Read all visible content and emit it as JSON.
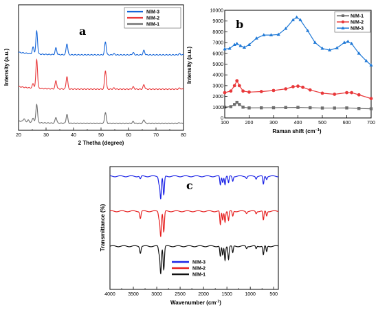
{
  "chart_data": [
    {
      "type": "line",
      "panel_label": "a",
      "xlabel": "2 Thetha (degree)",
      "ylabel": "Intensity (a.u.)",
      "xlim": [
        20,
        80
      ],
      "x_ticks": [
        "20",
        "30",
        "40",
        "50",
        "60",
        "70",
        "80"
      ],
      "y_ticks_labeled": false,
      "legend_position": "top-right",
      "series": [
        {
          "name": "N/M-3",
          "color": "#1565d8",
          "offset": 2.0,
          "peaks": [
            {
              "x": 25.3,
              "h": 0.18
            },
            {
              "x": 26.6,
              "h": 0.62
            },
            {
              "x": 33.6,
              "h": 0.18
            },
            {
              "x": 37.6,
              "h": 0.3
            },
            {
              "x": 51.6,
              "h": 0.35
            },
            {
              "x": 54.7,
              "h": 0.03
            },
            {
              "x": 61.7,
              "h": 0.06
            },
            {
              "x": 65.6,
              "h": 0.12
            },
            {
              "x": 78.6,
              "h": 0.03
            }
          ]
        },
        {
          "name": "N/M-2",
          "color": "#e8383a",
          "offset": 1.0,
          "peaks": [
            {
              "x": 25.3,
              "h": 0.12
            },
            {
              "x": 26.6,
              "h": 0.78
            },
            {
              "x": 33.6,
              "h": 0.22
            },
            {
              "x": 37.6,
              "h": 0.34
            },
            {
              "x": 51.6,
              "h": 0.5
            },
            {
              "x": 54.7,
              "h": 0.03
            },
            {
              "x": 61.7,
              "h": 0.06
            },
            {
              "x": 65.6,
              "h": 0.12
            },
            {
              "x": 78.6,
              "h": 0.03
            }
          ]
        },
        {
          "name": "N/M-1",
          "color": "#6e6e6e",
          "offset": 0.0,
          "peaks": [
            {
              "x": 22.0,
              "h": 0.08
            },
            {
              "x": 23.5,
              "h": 0.05
            },
            {
              "x": 25.3,
              "h": 0.12
            },
            {
              "x": 26.6,
              "h": 0.5
            },
            {
              "x": 33.6,
              "h": 0.16
            },
            {
              "x": 37.6,
              "h": 0.24
            },
            {
              "x": 51.6,
              "h": 0.3
            },
            {
              "x": 61.7,
              "h": 0.05
            },
            {
              "x": 65.6,
              "h": 0.1
            },
            {
              "x": 78.6,
              "h": 0.02
            }
          ]
        }
      ]
    },
    {
      "type": "line",
      "panel_label": "b",
      "xlabel": "Raman shift (cm",
      "xlabel_sup": "−1",
      "xlabel_end": ")",
      "ylabel": "Intensity (a.u.)",
      "xlim": [
        100,
        700
      ],
      "ylim": [
        0,
        10000
      ],
      "x_ticks": [
        "100",
        "200",
        "300",
        "400",
        "500",
        "600",
        "700"
      ],
      "y_ticks": [
        "0",
        "1000",
        "2000",
        "3000",
        "4000",
        "5000",
        "6000",
        "7000",
        "8000",
        "9000",
        "10000"
      ],
      "legend_position": "top-right",
      "series": [
        {
          "name": "N/M-1",
          "color": "#6e6e6e",
          "marker": "square",
          "x": [
            100,
            125,
            140,
            150,
            160,
            175,
            200,
            250,
            300,
            350,
            400,
            450,
            500,
            550,
            600,
            650,
            700
          ],
          "y": [
            1000,
            1050,
            1250,
            1450,
            1250,
            1000,
            930,
            940,
            950,
            970,
            980,
            950,
            920,
            920,
            930,
            880,
            850
          ]
        },
        {
          "name": "N/M-2",
          "color": "#e8383a",
          "marker": "circle",
          "x": [
            100,
            125,
            140,
            150,
            160,
            175,
            200,
            250,
            300,
            350,
            380,
            400,
            420,
            450,
            500,
            550,
            600,
            620,
            650,
            700
          ],
          "y": [
            2350,
            2500,
            3000,
            3450,
            3000,
            2500,
            2400,
            2450,
            2550,
            2700,
            2900,
            2950,
            2850,
            2600,
            2300,
            2200,
            2350,
            2350,
            2150,
            1800
          ]
        },
        {
          "name": "N/M-3",
          "color": "#1e78d6",
          "marker": "triangle",
          "x": [
            100,
            120,
            140,
            150,
            165,
            180,
            200,
            230,
            260,
            290,
            320,
            350,
            380,
            395,
            410,
            440,
            470,
            500,
            530,
            560,
            590,
            605,
            620,
            650,
            680,
            700
          ],
          "y": [
            6400,
            6450,
            6800,
            6900,
            6700,
            6550,
            6800,
            7400,
            7700,
            7700,
            7750,
            8300,
            9100,
            9350,
            9100,
            8100,
            7000,
            6450,
            6300,
            6500,
            7000,
            7100,
            6900,
            6000,
            5300,
            4900
          ]
        }
      ]
    },
    {
      "type": "line",
      "panel_label": "c",
      "xlabel": "Wavenumber (cm",
      "xlabel_sup": "-1",
      "xlabel_end": ")",
      "ylabel": "Transmittance (%)",
      "xlim": [
        4000,
        400
      ],
      "x_ticks": [
        "4000",
        "3500",
        "3000",
        "2500",
        "2000",
        "1500",
        "1000",
        "500"
      ],
      "y_ticks_labeled": false,
      "legend_position": "bottom-left",
      "series": [
        {
          "name": "N/M-3",
          "color": "#1a22e6",
          "offset": 2.0,
          "bands": [
            {
              "x": 3350,
              "d": 0.12
            },
            {
              "x": 2950,
              "d": 0.3
            },
            {
              "x": 2915,
              "d": 0.95
            },
            {
              "x": 2850,
              "d": 0.82
            },
            {
              "x": 1640,
              "d": 0.38
            },
            {
              "x": 1590,
              "d": 0.25
            },
            {
              "x": 1540,
              "d": 0.35
            },
            {
              "x": 1465,
              "d": 0.3
            },
            {
              "x": 1375,
              "d": 0.2
            },
            {
              "x": 1080,
              "d": 0.08
            },
            {
              "x": 875,
              "d": 0.1
            },
            {
              "x": 720,
              "d": 0.35
            },
            {
              "x": 650,
              "d": 0.12
            }
          ]
        },
        {
          "name": "N/M-2",
          "color": "#e62020",
          "offset": 1.0,
          "bands": [
            {
              "x": 3350,
              "d": 0.3
            },
            {
              "x": 2950,
              "d": 0.3
            },
            {
              "x": 2915,
              "d": 1.05
            },
            {
              "x": 2850,
              "d": 0.9
            },
            {
              "x": 1640,
              "d": 0.6
            },
            {
              "x": 1590,
              "d": 0.38
            },
            {
              "x": 1540,
              "d": 0.45
            },
            {
              "x": 1465,
              "d": 0.4
            },
            {
              "x": 1375,
              "d": 0.22
            },
            {
              "x": 1080,
              "d": 0.08
            },
            {
              "x": 875,
              "d": 0.1
            },
            {
              "x": 720,
              "d": 0.4
            },
            {
              "x": 650,
              "d": 0.2
            }
          ]
        },
        {
          "name": "N/M-1",
          "color": "#111111",
          "offset": 0.0,
          "bands": [
            {
              "x": 3350,
              "d": 0.28
            },
            {
              "x": 2950,
              "d": 0.3
            },
            {
              "x": 2915,
              "d": 1.15
            },
            {
              "x": 2850,
              "d": 1.0
            },
            {
              "x": 1640,
              "d": 0.45
            },
            {
              "x": 1590,
              "d": 0.4
            },
            {
              "x": 1540,
              "d": 0.6
            },
            {
              "x": 1465,
              "d": 0.55
            },
            {
              "x": 1375,
              "d": 0.3
            },
            {
              "x": 1080,
              "d": 0.1
            },
            {
              "x": 875,
              "d": 0.12
            },
            {
              "x": 720,
              "d": 0.38
            },
            {
              "x": 650,
              "d": 0.25
            }
          ]
        }
      ]
    }
  ]
}
